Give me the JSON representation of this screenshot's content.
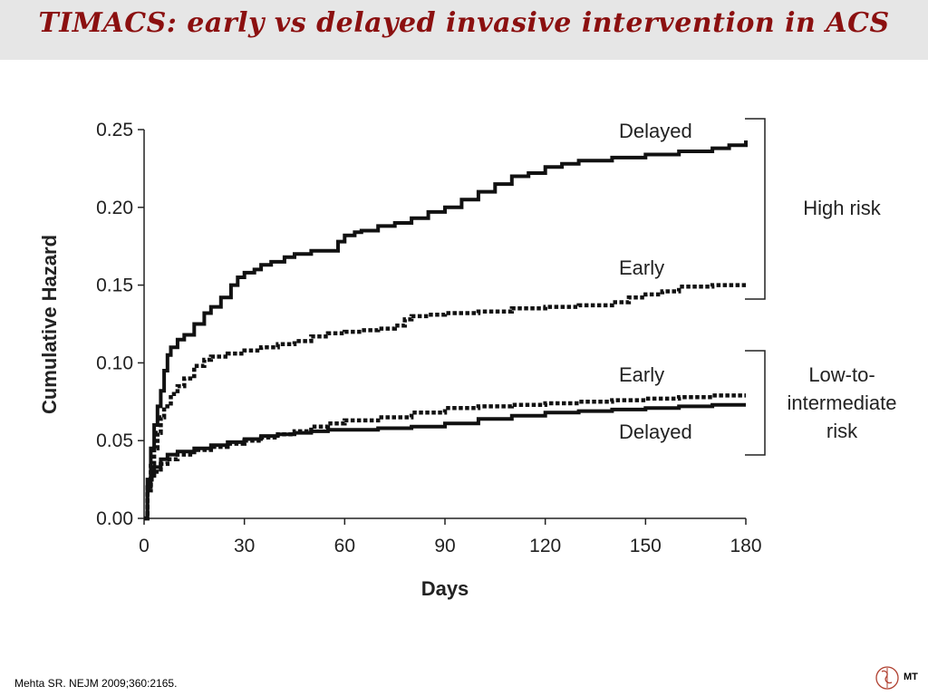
{
  "slide": {
    "title": "TIMACS: early vs delayed invasive intervention in ACS",
    "citation": "Mehta SR. NEJM 2009;360:2165.",
    "logo_text": "MT",
    "logo_icon": "mt-monogram-icon"
  },
  "chart_data": {
    "type": "line",
    "title": "",
    "xlabel": "Days",
    "ylabel": "Cumulative Hazard",
    "xlim": [
      0,
      180
    ],
    "ylim": [
      0,
      0.25
    ],
    "x_ticks": [
      0,
      30,
      60,
      90,
      120,
      150,
      180
    ],
    "x_tick_labels": [
      "0",
      "30",
      "60",
      "90",
      "120",
      "150",
      "180"
    ],
    "y_ticks": [
      0,
      0.05,
      0.1,
      0.15,
      0.2,
      0.25
    ],
    "y_tick_labels": [
      "0.00",
      "0.05",
      "0.10",
      "0.15",
      "0.20",
      "0.25"
    ],
    "grid": false,
    "series": [
      {
        "name": "Delayed",
        "group": "High risk",
        "style": "solid",
        "color": "#111111",
        "x": [
          0,
          1,
          2,
          3,
          4,
          5,
          6,
          7,
          8,
          10,
          12,
          15,
          18,
          20,
          23,
          26,
          28,
          30,
          33,
          35,
          38,
          42,
          45,
          50,
          55,
          58,
          60,
          63,
          65,
          70,
          75,
          80,
          85,
          90,
          95,
          100,
          105,
          110,
          115,
          120,
          125,
          130,
          140,
          150,
          160,
          170,
          175,
          180
        ],
        "y": [
          0,
          0.025,
          0.045,
          0.06,
          0.072,
          0.082,
          0.095,
          0.105,
          0.11,
          0.115,
          0.118,
          0.125,
          0.132,
          0.136,
          0.142,
          0.15,
          0.155,
          0.158,
          0.16,
          0.163,
          0.165,
          0.168,
          0.17,
          0.172,
          0.172,
          0.178,
          0.182,
          0.184,
          0.185,
          0.188,
          0.19,
          0.193,
          0.197,
          0.2,
          0.205,
          0.21,
          0.215,
          0.22,
          0.222,
          0.226,
          0.228,
          0.23,
          0.232,
          0.234,
          0.236,
          0.238,
          0.24,
          0.243
        ]
      },
      {
        "name": "Early",
        "group": "High risk",
        "style": "dotted",
        "color": "#111111",
        "x": [
          0,
          1,
          2,
          3,
          4,
          5,
          6,
          8,
          10,
          12,
          15,
          18,
          20,
          25,
          30,
          35,
          40,
          45,
          50,
          55,
          60,
          65,
          70,
          75,
          78,
          80,
          85,
          90,
          100,
          110,
          120,
          130,
          140,
          145,
          150,
          155,
          160,
          170,
          180
        ],
        "y": [
          0,
          0.02,
          0.035,
          0.045,
          0.055,
          0.065,
          0.072,
          0.08,
          0.085,
          0.09,
          0.098,
          0.102,
          0.104,
          0.106,
          0.108,
          0.11,
          0.112,
          0.114,
          0.117,
          0.119,
          0.12,
          0.121,
          0.122,
          0.124,
          0.128,
          0.13,
          0.131,
          0.132,
          0.133,
          0.135,
          0.136,
          0.137,
          0.139,
          0.142,
          0.144,
          0.146,
          0.149,
          0.15,
          0.15
        ]
      },
      {
        "name": "Early",
        "group": "Low-to-intermediate risk",
        "style": "dotted",
        "color": "#111111",
        "x": [
          0,
          1,
          2,
          3,
          5,
          7,
          10,
          15,
          20,
          25,
          30,
          35,
          40,
          45,
          50,
          55,
          60,
          70,
          80,
          90,
          100,
          110,
          120,
          130,
          140,
          150,
          160,
          170,
          180
        ],
        "y": [
          0,
          0.018,
          0.025,
          0.03,
          0.035,
          0.038,
          0.041,
          0.044,
          0.046,
          0.048,
          0.05,
          0.052,
          0.054,
          0.056,
          0.059,
          0.061,
          0.063,
          0.065,
          0.068,
          0.071,
          0.072,
          0.073,
          0.074,
          0.075,
          0.076,
          0.077,
          0.078,
          0.079,
          0.079
        ]
      },
      {
        "name": "Delayed",
        "group": "Low-to-intermediate risk",
        "style": "solid",
        "color": "#111111",
        "x": [
          0,
          1,
          2,
          3,
          5,
          7,
          10,
          15,
          20,
          25,
          30,
          35,
          40,
          45,
          50,
          55,
          60,
          70,
          80,
          90,
          100,
          110,
          120,
          130,
          140,
          150,
          160,
          170,
          180
        ],
        "y": [
          0,
          0.02,
          0.028,
          0.033,
          0.038,
          0.041,
          0.043,
          0.045,
          0.047,
          0.049,
          0.051,
          0.053,
          0.054,
          0.055,
          0.056,
          0.057,
          0.057,
          0.058,
          0.059,
          0.061,
          0.064,
          0.066,
          0.068,
          0.069,
          0.07,
          0.071,
          0.072,
          0.073,
          0.073
        ]
      }
    ],
    "annotations": {
      "label_high_delayed": "Delayed",
      "label_high_early": "Early",
      "label_low_early": "Early",
      "label_low_delayed": "Delayed",
      "bracket_high": "High risk",
      "bracket_low_line1": "Low-to-",
      "bracket_low_line2": "intermediate",
      "bracket_low_line3": "risk"
    }
  }
}
